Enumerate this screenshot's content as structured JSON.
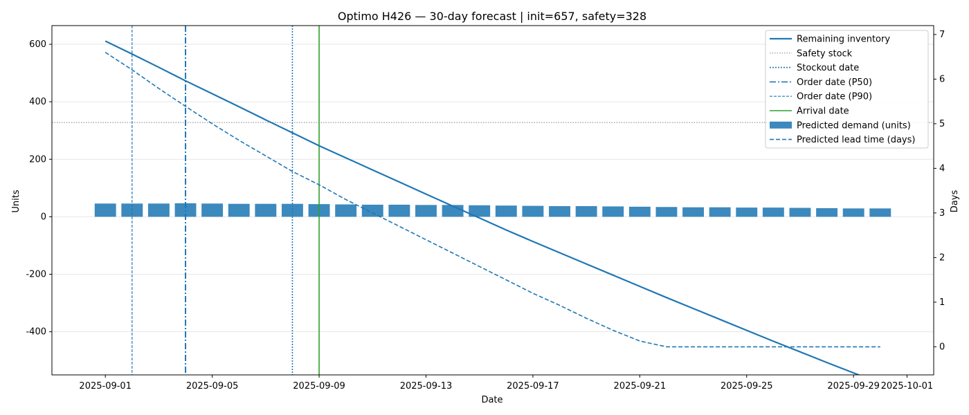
{
  "chart_data": {
    "type": "bar",
    "title": "Optimo H426 — 30-day forecast | init=657, safety=328",
    "xlabel": "Date",
    "ylabel": "Units",
    "y2label": "Days",
    "xlim": [
      "2025-08-30",
      "2025-10-02"
    ],
    "ylim": [
      -550,
      665
    ],
    "y2lim": [
      -0.63,
      7.2
    ],
    "x_ticks": [
      "2025-09-01",
      "2025-09-05",
      "2025-09-09",
      "2025-09-13",
      "2025-09-17",
      "2025-09-21",
      "2025-09-25",
      "2025-09-29",
      "2025-10-01"
    ],
    "y_ticks": [
      600,
      400,
      200,
      0,
      -200,
      -400
    ],
    "y2_ticks": [
      7,
      6,
      5,
      4,
      3,
      2,
      1,
      0
    ],
    "grid": "y",
    "legend_position": "top-right",
    "colors": {
      "main": "#1f77b4",
      "arrival": "#2ca02c",
      "safety": "#808080"
    },
    "dates": [
      "2025-09-01",
      "2025-09-02",
      "2025-09-03",
      "2025-09-04",
      "2025-09-05",
      "2025-09-06",
      "2025-09-07",
      "2025-09-08",
      "2025-09-09",
      "2025-09-10",
      "2025-09-11",
      "2025-09-12",
      "2025-09-13",
      "2025-09-14",
      "2025-09-15",
      "2025-09-16",
      "2025-09-17",
      "2025-09-18",
      "2025-09-19",
      "2025-09-20",
      "2025-09-21",
      "2025-09-22",
      "2025-09-23",
      "2025-09-24",
      "2025-09-25",
      "2025-09-26",
      "2025-09-27",
      "2025-09-28",
      "2025-09-29",
      "2025-09-30"
    ],
    "series": [
      {
        "name": "Remaining inventory",
        "kind": "line",
        "axis": "left",
        "values": [
          611,
          566,
          520,
          473,
          428,
          383,
          337,
          292,
          247,
          205,
          163,
          121,
          79,
          37,
          -4,
          -46,
          -86,
          -125,
          -164,
          -203,
          -242,
          -281,
          -319,
          -357,
          -395,
          -433,
          -470,
          -507,
          -543,
          -579
        ]
      },
      {
        "name": "Predicted demand (units)",
        "kind": "bar",
        "axis": "left",
        "values": [
          46,
          46,
          46,
          47,
          46,
          45,
          45,
          45,
          44,
          43,
          42,
          42,
          41,
          41,
          40,
          39,
          38,
          37,
          37,
          36,
          35,
          34,
          33,
          33,
          32,
          32,
          31,
          30,
          29,
          29
        ]
      },
      {
        "name": "Predicted lead time (days)",
        "kind": "line",
        "axis": "right",
        "values": [
          6.6,
          6.21,
          5.79,
          5.39,
          5.0,
          4.63,
          4.28,
          3.93,
          3.63,
          3.3,
          3.0,
          2.7,
          2.4,
          2.1,
          1.8,
          1.5,
          1.2,
          0.93,
          0.64,
          0.37,
          0.13,
          0.0,
          0.0,
          0.0,
          0.0,
          0.0,
          0.0,
          0.0,
          0.0,
          0.0
        ]
      }
    ],
    "safety_stock": 328,
    "stockout_date": "2025-09-08",
    "order_date_p50": "2025-09-04",
    "order_date_p90": "2025-09-02",
    "arrival_date": "2025-09-09",
    "legend": [
      {
        "label": "Remaining inventory",
        "style": "solid-thick"
      },
      {
        "label": "Safety stock",
        "style": "dotted-gray"
      },
      {
        "label": "Stockout date",
        "style": "dotted"
      },
      {
        "label": "Order date (P50)",
        "style": "dashdot"
      },
      {
        "label": "Order date (P90)",
        "style": "dashed-thin"
      },
      {
        "label": "Arrival date",
        "style": "solid-green"
      },
      {
        "label": "Predicted demand (units)",
        "style": "bar"
      },
      {
        "label": "Predicted lead time (days)",
        "style": "dashed"
      }
    ]
  }
}
